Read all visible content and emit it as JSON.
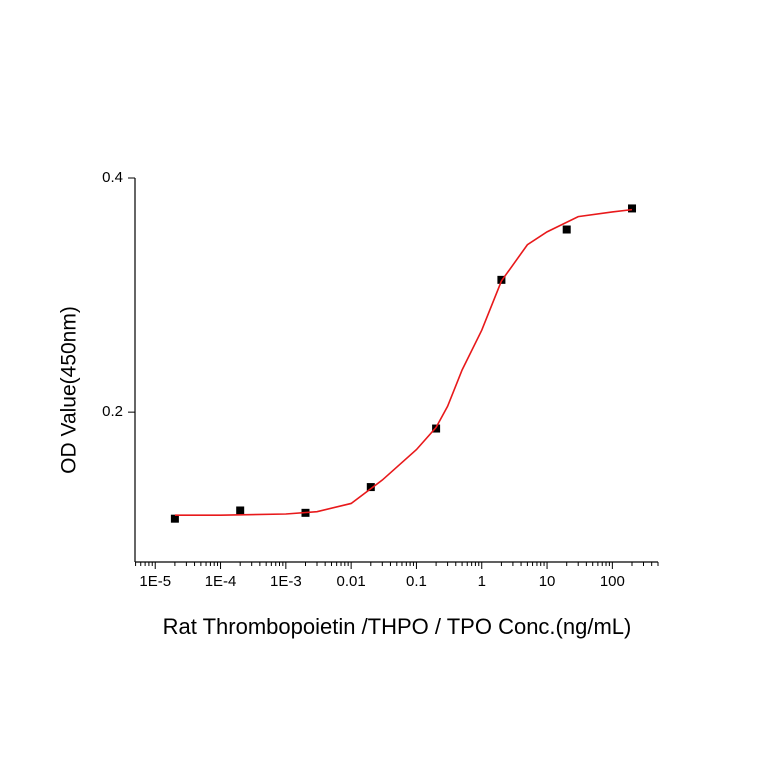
{
  "chart_data": {
    "type": "scatter",
    "xlabel": "Rat Thrombopoietin /THPO / TPO  Conc.(ng/mL)",
    "ylabel": "OD Value(450nm)",
    "xscale": "log",
    "xlim": [
      4.9e-06,
      500
    ],
    "xticks": [
      {
        "value": 1e-05,
        "label": "1E-5"
      },
      {
        "value": 0.0001,
        "label": "1E-4"
      },
      {
        "value": 0.001,
        "label": "1E-3"
      },
      0.01,
      0.1,
      1,
      10,
      100
    ],
    "ylim": [
      0.072,
      0.4
    ],
    "yticks": [
      0.2,
      0.4
    ],
    "series": [
      {
        "type": "scatter",
        "color": "#000000",
        "x": [
          2e-05,
          0.0002,
          0.002,
          0.02,
          0.2,
          2,
          20,
          200
        ],
        "values": [
          0.109,
          0.116,
          0.114,
          0.136,
          0.186,
          0.313,
          0.356,
          0.374
        ]
      },
      {
        "type": "line",
        "color": "#e8191b",
        "x": [
          2e-05,
          0.0001,
          0.001,
          0.003,
          0.01,
          0.03,
          0.1,
          0.2,
          0.3,
          0.5,
          1,
          2,
          5,
          10,
          30,
          100,
          200
        ],
        "values": [
          0.112,
          0.112,
          0.113,
          0.115,
          0.122,
          0.142,
          0.168,
          0.187,
          0.205,
          0.236,
          0.27,
          0.312,
          0.343,
          0.354,
          0.367,
          0.371,
          0.373
        ]
      }
    ]
  }
}
